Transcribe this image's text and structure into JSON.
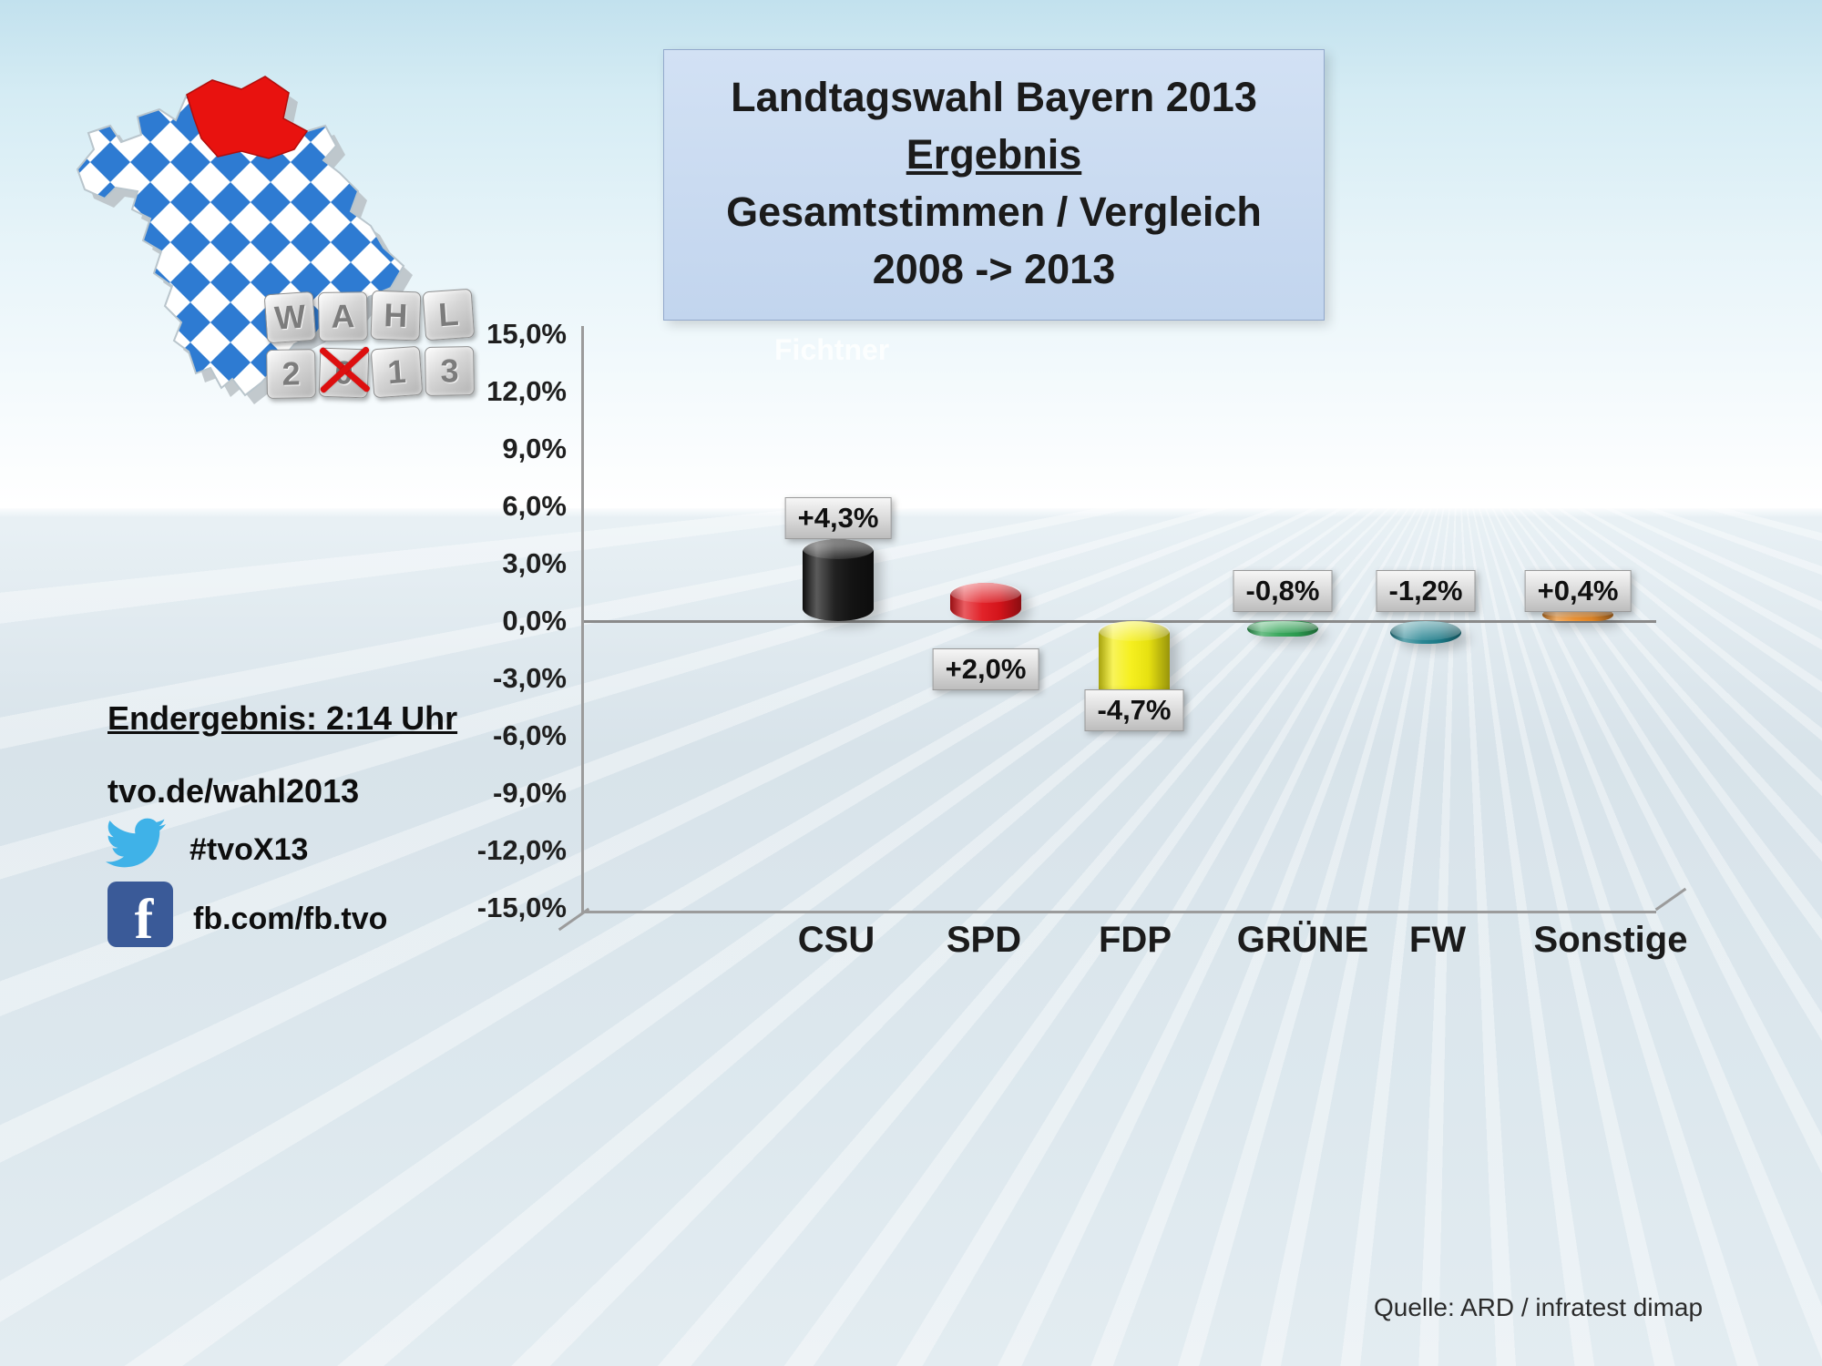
{
  "header": {
    "title_line1": "Landtagswahl Bayern 2013",
    "title_line2": "Ergebnis",
    "title_line3": "Gesamtstimmen / Vergleich",
    "title_line4": "2008 -> 2013"
  },
  "watermark": "Fichtner",
  "logo": {
    "blocks": [
      "W",
      "A",
      "H",
      "L",
      "2",
      "0",
      "1",
      "3"
    ],
    "crossed_block_index": 5
  },
  "info_panel": {
    "final_result_label": "Endergebnis: 2:14 Uhr",
    "website": "tvo.de/wahl2013",
    "twitter_hashtag": "#tvoX13",
    "facebook_page": "fb.com/fb.tvo"
  },
  "icons": {
    "facebook_glyph": "f"
  },
  "footer": {
    "source": "Quelle: ARD / infratest dimap"
  },
  "chart_data": {
    "type": "bar",
    "title": "Landtagswahl Bayern 2013 — Ergebnis — Gesamtstimmen / Vergleich 2008 -> 2013",
    "categories": [
      "CSU",
      "SPD",
      "FDP",
      "GRÜNE",
      "FW",
      "Sonstige"
    ],
    "values": [
      4.3,
      2.0,
      -4.7,
      -0.8,
      -1.2,
      0.4
    ],
    "value_labels": [
      "+4,3%",
      "+2,0%",
      "-4,7%",
      "-0,8%",
      "-1,2%",
      "+0,4%"
    ],
    "bar_colors": [
      "#141414",
      "#e0151c",
      "#f5ef12",
      "#2fa354",
      "#1d7f8d",
      "#ef8f2a"
    ],
    "y_ticks": [
      "15,0%",
      "12,0%",
      "9,0%",
      "6,0%",
      "3,0%",
      "0,0%",
      "-3,0%",
      "-6,0%",
      "-9,0%",
      "-12,0%",
      "-15,0%"
    ],
    "ylim": [
      -15,
      15
    ],
    "xlabel": "",
    "ylabel": "",
    "grid": false,
    "legend": false,
    "label_positions": [
      "above-bar",
      "below-zero",
      "below-bar",
      "above-zero",
      "above-zero",
      "above-zero"
    ]
  }
}
